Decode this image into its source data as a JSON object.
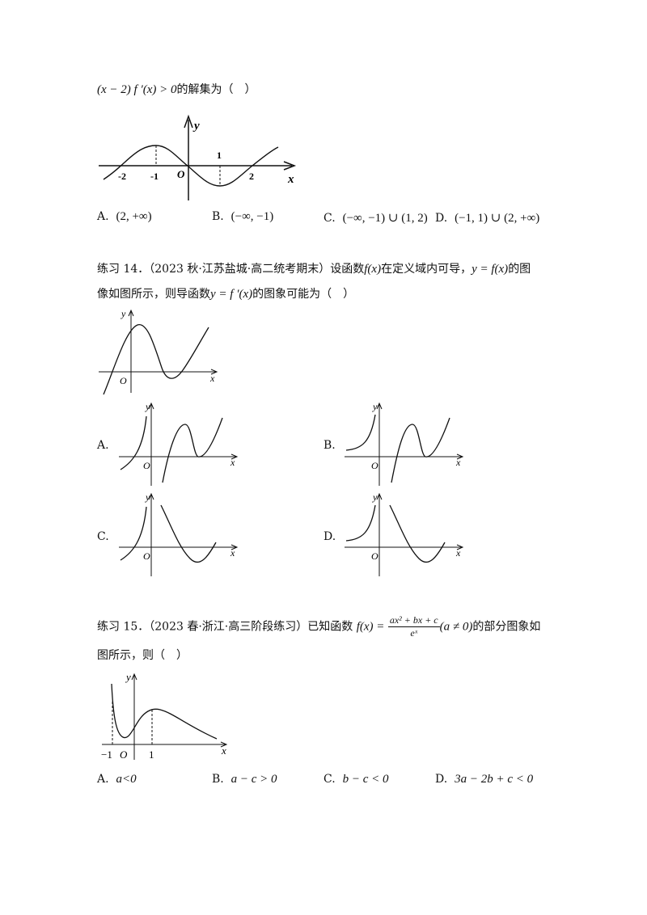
{
  "q13": {
    "stem_math": "(x − 2) f ′(x) > 0",
    "stem_text": "的解集为（　）",
    "graph_labels": {
      "y": "y",
      "x": "x",
      "o": "O",
      "n2": "-2",
      "n1": "-1",
      "p1": "1",
      "p2": "2"
    },
    "options": [
      {
        "letter": "A.",
        "value": "(2, +∞)"
      },
      {
        "letter": "B.",
        "value": "(−∞, −1)"
      },
      {
        "letter": "C.",
        "value": "(−∞, −1) ∪ (1, 2)"
      },
      {
        "letter": "D.",
        "value": "(−1, 1) ∪ (2, +∞)"
      }
    ]
  },
  "q14": {
    "line1_prefix": "练习 14．（2023 秋·江苏盐城·高二统考期末）设函数",
    "line1_fx": "f(x)",
    "line1_mid": "在定义域内可导，",
    "line1_eq": "y = f(x)",
    "line1_suffix": "的图",
    "line2_prefix": "像如图所示，则导函数",
    "line2_eq": "y = f ′(x)",
    "line2_suffix": "的图象可能为（　）",
    "graph_labels": {
      "y": "y",
      "x": "x",
      "o": "O"
    },
    "options": [
      {
        "letter": "A."
      },
      {
        "letter": "B."
      },
      {
        "letter": "C."
      },
      {
        "letter": "D."
      }
    ]
  },
  "q15": {
    "line1_prefix": "练习 15．（2023 春·浙江·高三阶段练习）已知函数",
    "fx": "f(x) =",
    "numerator": "ax² + bx + c",
    "denominator": "eˣ",
    "cond": "(a ≠ 0)",
    "line1_suffix": "的部分图象如",
    "line2": "图所示，则（　）",
    "graph_labels": {
      "y": "y",
      "x": "x",
      "o": "O",
      "n1": "−1",
      "p1": "1"
    },
    "options": [
      {
        "letter": "A.",
        "value": "a<0"
      },
      {
        "letter": "B.",
        "value": "a − c > 0"
      },
      {
        "letter": "C.",
        "value": "b − c < 0"
      },
      {
        "letter": "D.",
        "value": "3a − 2b + c < 0"
      }
    ]
  }
}
